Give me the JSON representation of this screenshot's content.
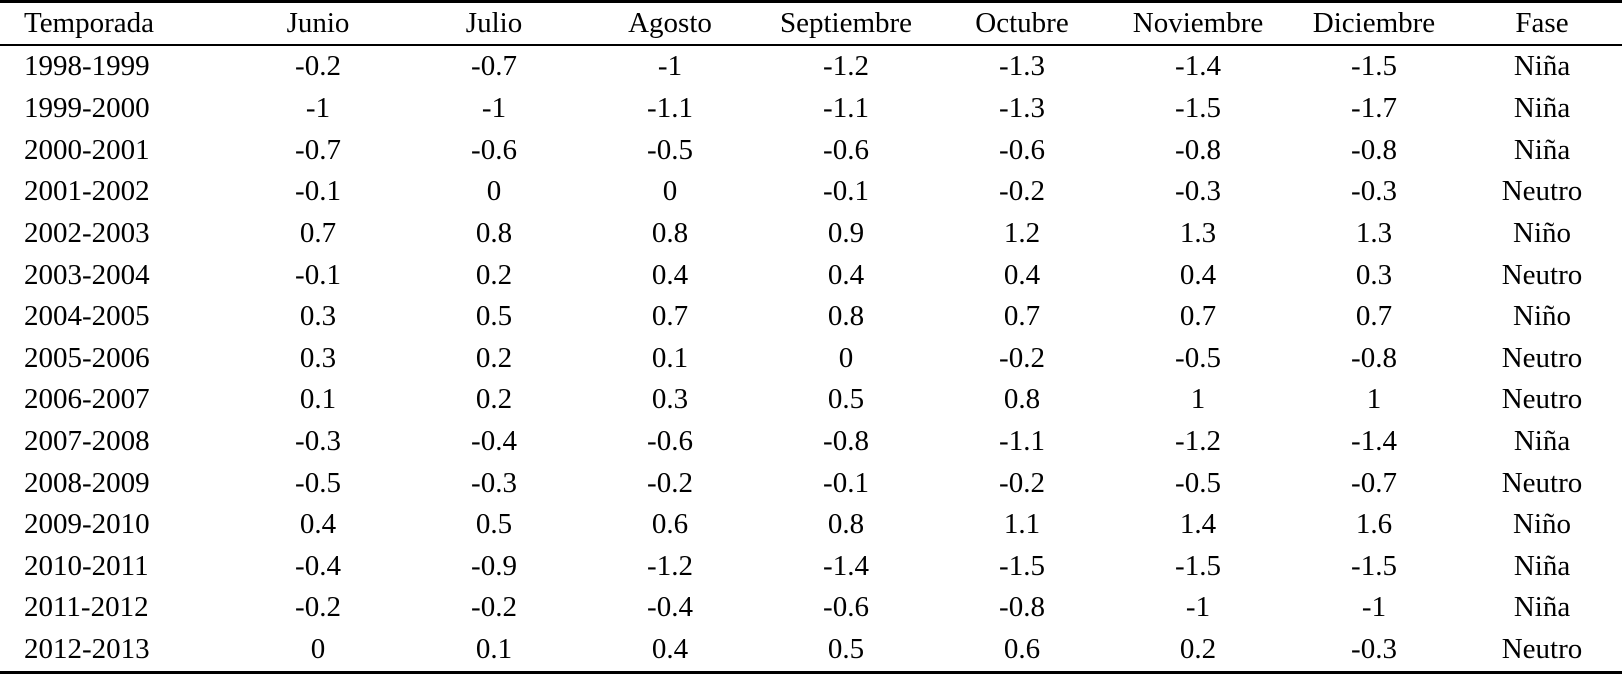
{
  "table": {
    "headers": [
      "Temporada",
      "Junio",
      "Julio",
      "Agosto",
      "Septiembre",
      "Octubre",
      "Noviembre",
      "Diciembre",
      "Fase"
    ],
    "rows": [
      [
        "1998-1999",
        "-0.2",
        "-0.7",
        "-1",
        "-1.2",
        "-1.3",
        "-1.4",
        "-1.5",
        "Niña"
      ],
      [
        "1999-2000",
        "-1",
        "-1",
        "-1.1",
        "-1.1",
        "-1.3",
        "-1.5",
        "-1.7",
        "Niña"
      ],
      [
        "2000-2001",
        "-0.7",
        "-0.6",
        "-0.5",
        "-0.6",
        "-0.6",
        "-0.8",
        "-0.8",
        "Niña"
      ],
      [
        "2001-2002",
        "-0.1",
        "0",
        "0",
        "-0.1",
        "-0.2",
        "-0.3",
        "-0.3",
        "Neutro"
      ],
      [
        "2002-2003",
        "0.7",
        "0.8",
        "0.8",
        "0.9",
        "1.2",
        "1.3",
        "1.3",
        "Niño"
      ],
      [
        "2003-2004",
        "-0.1",
        "0.2",
        "0.4",
        "0.4",
        "0.4",
        "0.4",
        "0.3",
        "Neutro"
      ],
      [
        "2004-2005",
        "0.3",
        "0.5",
        "0.7",
        "0.8",
        "0.7",
        "0.7",
        "0.7",
        "Niño"
      ],
      [
        "2005-2006",
        "0.3",
        "0.2",
        "0.1",
        "0",
        "-0.2",
        "-0.5",
        "-0.8",
        "Neutro"
      ],
      [
        "2006-2007",
        "0.1",
        "0.2",
        "0.3",
        "0.5",
        "0.8",
        "1",
        "1",
        "Neutro"
      ],
      [
        "2007-2008",
        "-0.3",
        "-0.4",
        "-0.6",
        "-0.8",
        "-1.1",
        "-1.2",
        "-1.4",
        "Niña"
      ],
      [
        "2008-2009",
        "-0.5",
        "-0.3",
        "-0.2",
        "-0.1",
        "-0.2",
        "-0.5",
        "-0.7",
        "Neutro"
      ],
      [
        "2009-2010",
        "0.4",
        "0.5",
        "0.6",
        "0.8",
        "1.1",
        "1.4",
        "1.6",
        "Niño"
      ],
      [
        "2010-2011",
        "-0.4",
        "-0.9",
        "-1.2",
        "-1.4",
        "-1.5",
        "-1.5",
        "-1.5",
        "Niña"
      ],
      [
        "2011-2012",
        "-0.2",
        "-0.2",
        "-0.4",
        "-0.6",
        "-0.8",
        "-1",
        "-1",
        "Niña"
      ],
      [
        "2012-2013",
        "0",
        "0.1",
        "0.4",
        "0.5",
        "0.6",
        "0.2",
        "-0.3",
        "Neutro"
      ]
    ],
    "colors": {
      "text": "#000000",
      "background": "#ffffff",
      "rule": "#000000"
    }
  }
}
